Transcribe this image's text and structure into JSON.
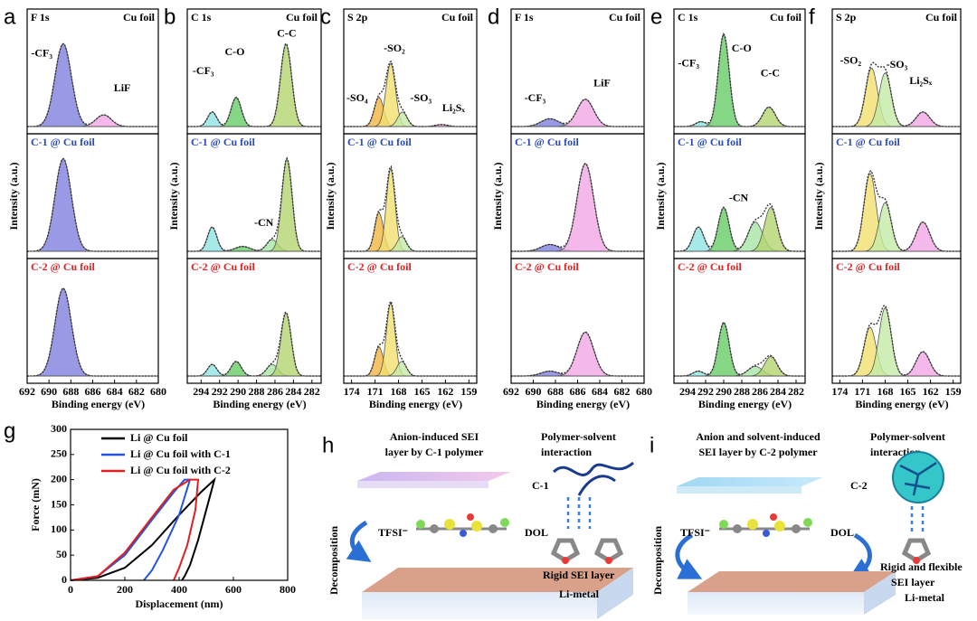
{
  "chart_data": [
    {
      "type": "xps",
      "panel_label": "a",
      "element": "F 1s",
      "ylabel": "Intensity (a.u.)",
      "xlabel": "Binding energy (eV)",
      "xlim": [
        692,
        680
      ],
      "xticks": [
        692,
        690,
        688,
        686,
        684,
        682,
        680
      ],
      "ylim": [
        0,
        1
      ],
      "subplots": [
        {
          "label": "Cu foil",
          "label_color": "#000000",
          "annotations": [
            "-CF₃",
            "LiF"
          ],
          "peaks": [
            {
              "center": 688.7,
              "height": 0.85,
              "width": 0.75,
              "color": "#7f7fe0"
            },
            {
              "center": 685.0,
              "height": 0.12,
              "width": 0.7,
              "color": "#f2a6e6"
            }
          ]
        },
        {
          "label": "C-1 @ Cu foil",
          "label_color": "#2a4bbf",
          "annotations": [],
          "peaks": [
            {
              "center": 688.7,
              "height": 0.95,
              "width": 0.75,
              "color": "#7f7fe0"
            }
          ]
        },
        {
          "label": "C-2 @ Cu foil",
          "label_color": "#e02222",
          "annotations": [],
          "peaks": [
            {
              "center": 688.7,
              "height": 0.9,
              "width": 0.75,
              "color": "#7f7fe0"
            }
          ]
        }
      ]
    },
    {
      "type": "xps",
      "panel_label": "b",
      "element": "C 1s",
      "ylabel": "Intensity (a.u.)",
      "xlabel": "Binding energy (eV)",
      "xlim": [
        295.5,
        281
      ],
      "xticks": [
        294,
        292,
        290,
        288,
        286,
        284,
        282
      ],
      "ylim": [
        0,
        1
      ],
      "subplots": [
        {
          "label": "Cu foil",
          "label_color": "#000000",
          "annotations": [
            "-CF₃",
            "C-O",
            "C-C"
          ],
          "peaks": [
            {
              "center": 292.8,
              "height": 0.15,
              "width": 0.5,
              "color": "#8fe3e3"
            },
            {
              "center": 290.2,
              "height": 0.3,
              "width": 0.55,
              "color": "#66cc66"
            },
            {
              "center": 284.8,
              "height": 0.85,
              "width": 0.6,
              "color": "#b3d46e"
            }
          ]
        },
        {
          "label": "C-1 @ Cu foil",
          "label_color": "#2a4bbf",
          "annotations": [
            "-CN"
          ],
          "peaks": [
            {
              "center": 292.8,
              "height": 0.25,
              "width": 0.5,
              "color": "#8fe3e3"
            },
            {
              "center": 289.5,
              "height": 0.05,
              "width": 0.8,
              "color": "#66cc66"
            },
            {
              "center": 286.3,
              "height": 0.12,
              "width": 0.6,
              "color": "#a8e6a8"
            },
            {
              "center": 284.7,
              "height": 0.95,
              "width": 0.55,
              "color": "#b3d46e"
            }
          ]
        },
        {
          "label": "C-2 @ Cu foil",
          "label_color": "#e02222",
          "annotations": [],
          "peaks": [
            {
              "center": 292.8,
              "height": 0.12,
              "width": 0.5,
              "color": "#8fe3e3"
            },
            {
              "center": 290.2,
              "height": 0.15,
              "width": 0.55,
              "color": "#66cc66"
            },
            {
              "center": 286.3,
              "height": 0.12,
              "width": 0.6,
              "color": "#a8e6a8"
            },
            {
              "center": 284.8,
              "height": 0.65,
              "width": 0.55,
              "color": "#b3d46e"
            }
          ]
        }
      ]
    },
    {
      "type": "xps",
      "panel_label": "c",
      "element": "S 2p",
      "ylabel": "Intensity (a.u.)",
      "xlabel": "Binding energy (eV)",
      "xlim": [
        175,
        158
      ],
      "xticks": [
        174,
        171,
        168,
        165,
        162,
        159
      ],
      "ylim": [
        0,
        1
      ],
      "subplots": [
        {
          "label": "Cu foil",
          "label_color": "#000000",
          "annotations": [
            "-SO₄",
            "-SO₂",
            "-SO₃",
            "Li₂Sₓ"
          ],
          "peaks": [
            {
              "center": 170.5,
              "height": 0.3,
              "width": 0.6,
              "color": "#f2b540"
            },
            {
              "center": 169.0,
              "height": 0.65,
              "width": 0.6,
              "color": "#f2e06e"
            },
            {
              "center": 167.5,
              "height": 0.15,
              "width": 0.6,
              "color": "#c4eba6"
            },
            {
              "center": 162.5,
              "height": 0.02,
              "width": 0.8,
              "color": "#f2a6e6"
            }
          ]
        },
        {
          "label": "C-1 @ Cu foil",
          "label_color": "#2a4bbf",
          "annotations": [],
          "peaks": [
            {
              "center": 170.5,
              "height": 0.4,
              "width": 0.55,
              "color": "#f2b540"
            },
            {
              "center": 169.0,
              "height": 0.85,
              "width": 0.55,
              "color": "#f2e06e"
            },
            {
              "center": 167.6,
              "height": 0.15,
              "width": 0.6,
              "color": "#c4eba6"
            }
          ]
        },
        {
          "label": "C-2 @ Cu foil",
          "label_color": "#e02222",
          "annotations": [],
          "peaks": [
            {
              "center": 170.5,
              "height": 0.3,
              "width": 0.55,
              "color": "#f2b540"
            },
            {
              "center": 169.0,
              "height": 0.75,
              "width": 0.55,
              "color": "#f2e06e"
            },
            {
              "center": 167.6,
              "height": 0.15,
              "width": 0.6,
              "color": "#c4eba6"
            }
          ]
        }
      ]
    },
    {
      "type": "xps",
      "panel_label": "d",
      "element": "F 1s",
      "ylabel": "Intensity (a.u.)",
      "xlabel": "Binding energy (eV)",
      "xlim": [
        692,
        680
      ],
      "xticks": [
        692,
        690,
        688,
        686,
        684,
        682,
        680
      ],
      "ylim": [
        0,
        1
      ],
      "subplots": [
        {
          "label": "Cu foil",
          "label_color": "#000000",
          "annotations": [
            "-CF₃",
            "LiF"
          ],
          "peaks": [
            {
              "center": 688.5,
              "height": 0.08,
              "width": 0.8,
              "color": "#7f7fe0"
            },
            {
              "center": 685.3,
              "height": 0.28,
              "width": 0.75,
              "color": "#f2a6e6"
            }
          ]
        },
        {
          "label": "C-1 @ Cu foil",
          "label_color": "#2a4bbf",
          "annotations": [],
          "peaks": [
            {
              "center": 688.5,
              "height": 0.07,
              "width": 0.8,
              "color": "#7f7fe0"
            },
            {
              "center": 685.3,
              "height": 0.9,
              "width": 0.75,
              "color": "#f2a6e6"
            }
          ]
        },
        {
          "label": "C-2 @ Cu foil",
          "label_color": "#e02222",
          "annotations": [],
          "peaks": [
            {
              "center": 688.5,
              "height": 0.05,
              "width": 0.8,
              "color": "#7f7fe0"
            },
            {
              "center": 685.3,
              "height": 0.45,
              "width": 0.75,
              "color": "#f2a6e6"
            }
          ]
        }
      ]
    },
    {
      "type": "xps",
      "panel_label": "e",
      "element": "C 1s",
      "ylabel": "Intensity (a.u.)",
      "xlabel": "Binding energy (eV)",
      "xlim": [
        295.5,
        281
      ],
      "xticks": [
        294,
        292,
        290,
        288,
        286,
        284,
        282
      ],
      "ylim": [
        0,
        1
      ],
      "subplots": [
        {
          "label": "Cu foil",
          "label_color": "#000000",
          "annotations": [
            "-CF₃",
            "C-O",
            "C-C"
          ],
          "peaks": [
            {
              "center": 292.5,
              "height": 0.05,
              "width": 0.6,
              "color": "#8fe3e3"
            },
            {
              "center": 290.0,
              "height": 0.95,
              "width": 0.6,
              "color": "#66cc66"
            },
            {
              "center": 285.0,
              "height": 0.2,
              "width": 0.7,
              "color": "#b3d46e"
            }
          ]
        },
        {
          "label": "C-1 @ Cu foil",
          "label_color": "#2a4bbf",
          "annotations": [
            "-CN"
          ],
          "peaks": [
            {
              "center": 292.8,
              "height": 0.25,
              "width": 0.6,
              "color": "#8fe3e3"
            },
            {
              "center": 290.0,
              "height": 0.45,
              "width": 0.6,
              "color": "#66cc66"
            },
            {
              "center": 286.5,
              "height": 0.3,
              "width": 0.8,
              "color": "#a8e6a8"
            },
            {
              "center": 284.8,
              "height": 0.45,
              "width": 0.7,
              "color": "#b3d46e"
            }
          ]
        },
        {
          "label": "C-2 @ Cu foil",
          "label_color": "#e02222",
          "annotations": [],
          "peaks": [
            {
              "center": 292.8,
              "height": 0.05,
              "width": 0.6,
              "color": "#8fe3e3"
            },
            {
              "center": 290.0,
              "height": 0.55,
              "width": 0.6,
              "color": "#66cc66"
            },
            {
              "center": 286.5,
              "height": 0.1,
              "width": 0.8,
              "color": "#a8e6a8"
            },
            {
              "center": 284.8,
              "height": 0.2,
              "width": 0.7,
              "color": "#b3d46e"
            }
          ]
        }
      ]
    },
    {
      "type": "xps",
      "panel_label": "f",
      "element": "S 2p",
      "ylabel": "Intensity (a.u.)",
      "xlabel": "Binding energy (eV)",
      "xlim": [
        175,
        158
      ],
      "xticks": [
        174,
        171,
        168,
        165,
        162,
        159
      ],
      "ylim": [
        0,
        1
      ],
      "subplots": [
        {
          "label": "Cu foil",
          "label_color": "#000000",
          "annotations": [
            "-SO₂",
            "-SO₃",
            "Li₂Sₓ"
          ],
          "peaks": [
            {
              "center": 169.8,
              "height": 0.6,
              "width": 0.8,
              "color": "#f2e06e"
            },
            {
              "center": 168.0,
              "height": 0.55,
              "width": 0.8,
              "color": "#c4eba6"
            },
            {
              "center": 163.0,
              "height": 0.15,
              "width": 0.9,
              "color": "#f2a6e6"
            }
          ]
        },
        {
          "label": "C-1 @ Cu foil",
          "label_color": "#2a4bbf",
          "annotations": [],
          "peaks": [
            {
              "center": 170.0,
              "height": 0.8,
              "width": 0.8,
              "color": "#f2e06e"
            },
            {
              "center": 168.0,
              "height": 0.5,
              "width": 0.8,
              "color": "#c4eba6"
            },
            {
              "center": 163.0,
              "height": 0.3,
              "width": 0.9,
              "color": "#f2a6e6"
            }
          ]
        },
        {
          "label": "C-2 @ Cu foil",
          "label_color": "#e02222",
          "annotations": [],
          "peaks": [
            {
              "center": 170.0,
              "height": 0.5,
              "width": 0.8,
              "color": "#f2e06e"
            },
            {
              "center": 168.0,
              "height": 0.7,
              "width": 0.8,
              "color": "#c4eba6"
            },
            {
              "center": 163.0,
              "height": 0.25,
              "width": 0.9,
              "color": "#f2a6e6"
            }
          ]
        }
      ]
    },
    {
      "type": "line",
      "panel_label": "g",
      "xlabel": "Displacement (nm)",
      "ylabel": "Force (mN)",
      "xlim": [
        0,
        800
      ],
      "xticks": [
        0,
        200,
        400,
        600,
        800
      ],
      "ylim": [
        0,
        300
      ],
      "yticks": [
        0,
        50,
        100,
        150,
        200,
        250,
        300
      ],
      "legend": "upper center",
      "series": [
        {
          "name": "Li @ Cu foil",
          "color": "#000000",
          "x": [
            0,
            100,
            200,
            300,
            400,
            480,
            530,
            500,
            470,
            440,
            420,
            410
          ],
          "values": [
            0,
            5,
            25,
            70,
            130,
            175,
            200,
            140,
            80,
            30,
            8,
            0
          ]
        },
        {
          "name": "Li @ Cu foil with C-1",
          "color": "#2255dd",
          "x": [
            0,
            100,
            200,
            300,
            380,
            420,
            440,
            400,
            340,
            300,
            270
          ],
          "values": [
            0,
            8,
            50,
            120,
            175,
            200,
            200,
            130,
            60,
            20,
            0
          ]
        },
        {
          "name": "Li @ Cu foil with C-2",
          "color": "#e02020",
          "x": [
            0,
            100,
            200,
            300,
            380,
            440,
            470,
            460,
            430,
            400,
            380
          ],
          "values": [
            0,
            8,
            55,
            125,
            180,
            200,
            200,
            140,
            70,
            25,
            0
          ]
        }
      ]
    }
  ],
  "schematics": {
    "h": {
      "panel_label": "h",
      "title": [
        "Anion-induced SEI",
        "layer by C-1 polymer"
      ],
      "interaction": [
        "Polymer-solvent",
        "interaction"
      ],
      "polymer": "C-1",
      "anion": "TFSI⁻",
      "solvent": "DOL",
      "process": "Decomposition",
      "sei": [
        "Rigid SEI layer"
      ],
      "metal": "Li-metal"
    },
    "i": {
      "panel_label": "i",
      "title": [
        "Anion and  solvent-induced",
        "SEI layer by C-2 polymer"
      ],
      "interaction": [
        "Polymer-solvent",
        "interaction"
      ],
      "polymer": "C-2",
      "anion": "TFSI⁻",
      "solvent": "DOL",
      "process": "Decomposition",
      "sei": [
        "Rigid and flexible",
        "SEI layer"
      ],
      "metal": "Li-metal"
    }
  }
}
